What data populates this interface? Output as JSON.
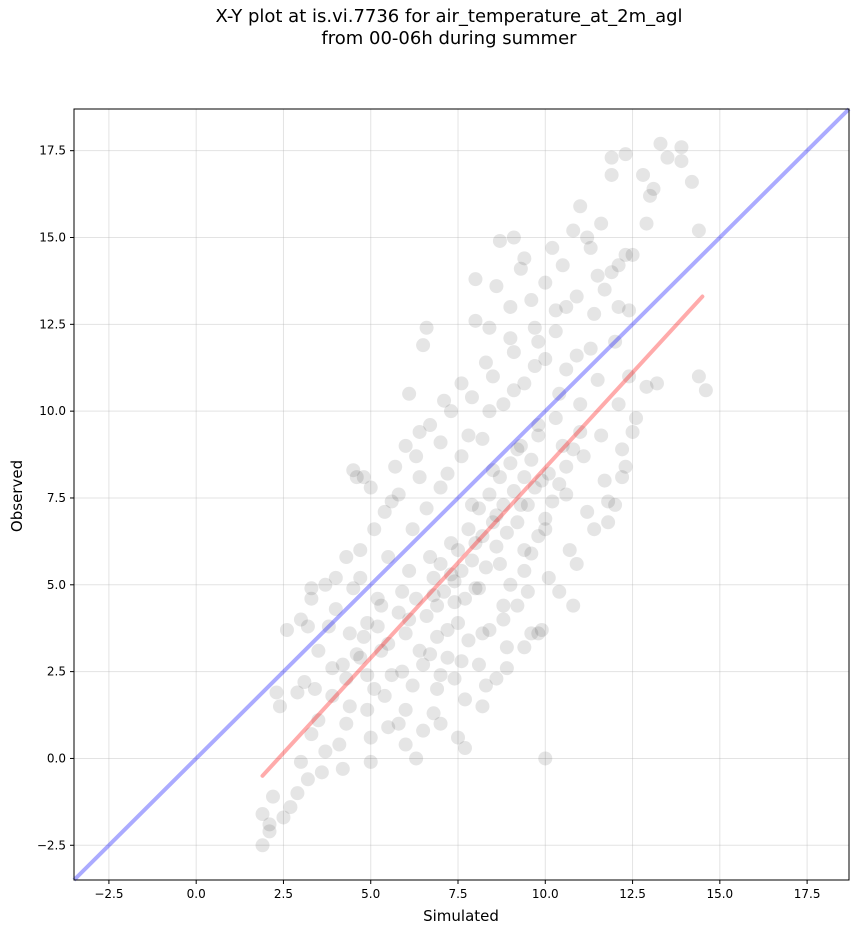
{
  "title": "X-Y plot at is.vi.7736 for air_temperature_at_2m_agl\nfrom 00-06h during summer",
  "chart_data": {
    "type": "scatter",
    "title": "X-Y plot at is.vi.7736 for air_temperature_at_2m_agl\nfrom 00-06h during summer",
    "xlabel": "Simulated",
    "ylabel": "Observed",
    "xlim": [
      -3.5,
      18.7
    ],
    "ylim": [
      -3.5,
      18.7
    ],
    "xticks": [
      "−2.5",
      "0.0",
      "2.5",
      "5.0",
      "7.5",
      "10.0",
      "12.5",
      "15.0",
      "17.5"
    ],
    "yticks": [
      "−2.5",
      "0.0",
      "2.5",
      "5.0",
      "7.5",
      "10.0",
      "12.5",
      "15.0",
      "17.5"
    ],
    "grid": true,
    "point_color": "#000000",
    "point_opacity": 0.1,
    "identity_line": {
      "color": "#0000ff",
      "from": [
        -3.5,
        -3.5
      ],
      "to": [
        18.7,
        18.7
      ]
    },
    "fit_line": {
      "color": "#ff0000",
      "from": [
        1.9,
        -0.5
      ],
      "to": [
        14.5,
        13.3
      ]
    },
    "points": [
      [
        1.9,
        -2.5
      ],
      [
        1.9,
        -1.6
      ],
      [
        2.1,
        -2.1
      ],
      [
        2.2,
        -1.1
      ],
      [
        2.5,
        -1.7
      ],
      [
        2.7,
        -1.4
      ],
      [
        2.1,
        -1.9
      ],
      [
        2.3,
        1.9
      ],
      [
        2.4,
        1.5
      ],
      [
        2.6,
        3.7
      ],
      [
        2.9,
        -1.0
      ],
      [
        3.0,
        -0.1
      ],
      [
        3.2,
        -0.6
      ],
      [
        2.9,
        1.9
      ],
      [
        3.1,
        2.2
      ],
      [
        3.2,
        3.8
      ],
      [
        3.3,
        4.6
      ],
      [
        3.3,
        4.9
      ],
      [
        3.0,
        4.0
      ],
      [
        3.3,
        0.7
      ],
      [
        3.4,
        2.0
      ],
      [
        3.5,
        3.1
      ],
      [
        3.6,
        -0.4
      ],
      [
        3.7,
        0.2
      ],
      [
        3.5,
        1.1
      ],
      [
        3.7,
        5.0
      ],
      [
        3.8,
        3.8
      ],
      [
        3.9,
        2.6
      ],
      [
        4.0,
        4.3
      ],
      [
        4.0,
        5.2
      ],
      [
        4.1,
        0.4
      ],
      [
        4.2,
        -0.3
      ],
      [
        4.3,
        1.0
      ],
      [
        4.3,
        2.3
      ],
      [
        4.4,
        3.6
      ],
      [
        4.3,
        5.8
      ],
      [
        4.5,
        4.9
      ],
      [
        4.5,
        8.3
      ],
      [
        4.6,
        8.1
      ],
      [
        4.8,
        8.1
      ],
      [
        4.7,
        6.0
      ],
      [
        4.7,
        5.2
      ],
      [
        4.8,
        3.5
      ],
      [
        4.9,
        2.4
      ],
      [
        4.9,
        1.4
      ],
      [
        5.0,
        0.6
      ],
      [
        5.0,
        -0.1
      ],
      [
        5.1,
        6.6
      ],
      [
        5.2,
        4.6
      ],
      [
        5.3,
        3.1
      ],
      [
        5.4,
        1.8
      ],
      [
        5.5,
        0.9
      ],
      [
        5.5,
        5.8
      ],
      [
        5.6,
        7.4
      ],
      [
        5.7,
        8.4
      ],
      [
        5.8,
        4.2
      ],
      [
        5.9,
        2.5
      ],
      [
        6.0,
        1.4
      ],
      [
        6.0,
        3.6
      ],
      [
        6.1,
        5.4
      ],
      [
        6.2,
        6.6
      ],
      [
        6.3,
        8.7
      ],
      [
        6.1,
        10.5
      ],
      [
        6.4,
        9.4
      ],
      [
        6.5,
        11.9
      ],
      [
        6.6,
        12.4
      ],
      [
        6.6,
        7.2
      ],
      [
        6.7,
        5.8
      ],
      [
        6.8,
        4.7
      ],
      [
        6.9,
        3.5
      ],
      [
        7.0,
        2.4
      ],
      [
        6.3,
        0.0
      ],
      [
        6.8,
        1.3
      ],
      [
        7.0,
        9.1
      ],
      [
        7.1,
        10.3
      ],
      [
        7.2,
        8.2
      ],
      [
        7.3,
        6.2
      ],
      [
        7.4,
        5.1
      ],
      [
        7.5,
        3.9
      ],
      [
        7.6,
        2.8
      ],
      [
        7.7,
        1.7
      ],
      [
        7.5,
        0.6
      ],
      [
        7.6,
        10.8
      ],
      [
        7.8,
        9.3
      ],
      [
        7.9,
        7.3
      ],
      [
        8.0,
        6.2
      ],
      [
        8.1,
        4.9
      ],
      [
        8.2,
        3.6
      ],
      [
        8.3,
        2.1
      ],
      [
        8.0,
        12.6
      ],
      [
        8.3,
        11.4
      ],
      [
        8.4,
        10.0
      ],
      [
        8.5,
        8.3
      ],
      [
        8.6,
        7.0
      ],
      [
        8.7,
        5.6
      ],
      [
        8.8,
        4.4
      ],
      [
        8.9,
        3.2
      ],
      [
        8.6,
        13.6
      ],
      [
        8.7,
        14.9
      ],
      [
        9.0,
        12.1
      ],
      [
        9.1,
        10.6
      ],
      [
        9.2,
        8.9
      ],
      [
        9.3,
        7.3
      ],
      [
        9.4,
        6.0
      ],
      [
        9.5,
        4.8
      ],
      [
        9.6,
        3.6
      ],
      [
        9.1,
        15.0
      ],
      [
        9.3,
        14.1
      ],
      [
        9.6,
        13.2
      ],
      [
        9.7,
        11.3
      ],
      [
        9.8,
        9.6
      ],
      [
        9.9,
        8.0
      ],
      [
        10.0,
        6.6
      ],
      [
        10.1,
        5.2
      ],
      [
        9.9,
        3.7
      ],
      [
        10.0,
        0.0
      ],
      [
        10.2,
        14.7
      ],
      [
        10.3,
        12.3
      ],
      [
        10.4,
        10.5
      ],
      [
        10.5,
        9.0
      ],
      [
        10.6,
        7.6
      ],
      [
        10.7,
        6.0
      ],
      [
        10.8,
        4.4
      ],
      [
        10.6,
        13.0
      ],
      [
        10.8,
        15.2
      ],
      [
        10.9,
        11.6
      ],
      [
        11.0,
        10.2
      ],
      [
        11.1,
        8.7
      ],
      [
        11.2,
        7.1
      ],
      [
        11.0,
        15.9
      ],
      [
        11.3,
        14.7
      ],
      [
        11.4,
        12.8
      ],
      [
        11.5,
        10.9
      ],
      [
        11.6,
        9.3
      ],
      [
        11.7,
        8.0
      ],
      [
        11.8,
        6.8
      ],
      [
        11.6,
        15.4
      ],
      [
        11.9,
        14.0
      ],
      [
        12.0,
        12.0
      ],
      [
        12.1,
        10.2
      ],
      [
        12.2,
        8.9
      ],
      [
        12.0,
        7.3
      ],
      [
        11.9,
        17.3
      ],
      [
        11.9,
        16.8
      ],
      [
        12.3,
        17.4
      ],
      [
        12.3,
        14.5
      ],
      [
        12.4,
        12.9
      ],
      [
        12.4,
        11.0
      ],
      [
        12.5,
        9.4
      ],
      [
        12.3,
        8.4
      ],
      [
        12.8,
        16.8
      ],
      [
        12.9,
        15.4
      ],
      [
        13.0,
        16.2
      ],
      [
        13.1,
        16.4
      ],
      [
        12.9,
        10.7
      ],
      [
        13.3,
        17.7
      ],
      [
        13.5,
        17.3
      ],
      [
        13.9,
        17.6
      ],
      [
        13.9,
        17.2
      ],
      [
        14.2,
        16.6
      ],
      [
        14.4,
        15.2
      ],
      [
        14.4,
        11.0
      ],
      [
        14.6,
        10.6
      ],
      [
        4.6,
        3.0
      ],
      [
        5.2,
        3.8
      ],
      [
        5.5,
        3.3
      ],
      [
        5.9,
        4.8
      ],
      [
        6.1,
        4.0
      ],
      [
        6.3,
        4.6
      ],
      [
        6.4,
        3.1
      ],
      [
        6.6,
        4.1
      ],
      [
        6.7,
        3.0
      ],
      [
        6.8,
        5.2
      ],
      [
        6.9,
        4.4
      ],
      [
        7.0,
        5.6
      ],
      [
        7.1,
        4.8
      ],
      [
        7.2,
        3.7
      ],
      [
        7.3,
        5.3
      ],
      [
        7.4,
        4.5
      ],
      [
        7.5,
        6.0
      ],
      [
        7.6,
        5.4
      ],
      [
        7.7,
        4.6
      ],
      [
        7.8,
        6.6
      ],
      [
        7.9,
        5.7
      ],
      [
        8.0,
        4.9
      ],
      [
        8.1,
        7.2
      ],
      [
        8.2,
        6.4
      ],
      [
        8.3,
        5.5
      ],
      [
        8.4,
        7.6
      ],
      [
        8.5,
        6.8
      ],
      [
        8.6,
        6.1
      ],
      [
        8.7,
        8.1
      ],
      [
        8.8,
        7.3
      ],
      [
        8.9,
        6.5
      ],
      [
        9.0,
        8.5
      ],
      [
        9.1,
        7.7
      ],
      [
        9.2,
        6.8
      ],
      [
        9.3,
        9.0
      ],
      [
        9.4,
        8.1
      ],
      [
        9.5,
        7.3
      ],
      [
        9.6,
        8.6
      ],
      [
        9.7,
        7.8
      ],
      [
        9.8,
        9.3
      ],
      [
        6.2,
        2.1
      ],
      [
        6.5,
        2.7
      ],
      [
        6.9,
        2.0
      ],
      [
        7.2,
        2.9
      ],
      [
        7.4,
        2.3
      ],
      [
        7.8,
        3.4
      ],
      [
        8.1,
        2.7
      ],
      [
        8.4,
        3.7
      ],
      [
        8.8,
        4.0
      ],
      [
        9.0,
        5.0
      ],
      [
        9.2,
        4.4
      ],
      [
        9.4,
        5.4
      ],
      [
        9.6,
        5.9
      ],
      [
        9.8,
        6.4
      ],
      [
        10.0,
        6.9
      ],
      [
        10.2,
        7.4
      ],
      [
        10.4,
        7.9
      ],
      [
        10.6,
        8.4
      ],
      [
        10.8,
        8.9
      ],
      [
        11.0,
        9.4
      ],
      [
        10.1,
        8.2
      ],
      [
        10.3,
        9.8
      ],
      [
        5.0,
        7.8
      ],
      [
        5.4,
        7.1
      ],
      [
        5.8,
        7.6
      ],
      [
        6.0,
        9.0
      ],
      [
        6.4,
        8.1
      ],
      [
        6.7,
        9.6
      ],
      [
        7.0,
        7.8
      ],
      [
        7.3,
        10.0
      ],
      [
        7.6,
        8.7
      ],
      [
        7.9,
        10.4
      ],
      [
        8.2,
        9.2
      ],
      [
        8.5,
        11.0
      ],
      [
        8.8,
        10.2
      ],
      [
        9.1,
        11.7
      ],
      [
        9.4,
        10.8
      ],
      [
        9.7,
        12.4
      ],
      [
        10.0,
        11.5
      ],
      [
        10.3,
        12.9
      ],
      [
        10.6,
        11.2
      ],
      [
        10.9,
        13.3
      ],
      [
        3.9,
        1.8
      ],
      [
        4.2,
        2.7
      ],
      [
        4.4,
        1.5
      ],
      [
        4.7,
        2.9
      ],
      [
        4.9,
        3.9
      ],
      [
        5.1,
        2.0
      ],
      [
        5.3,
        4.4
      ],
      [
        5.6,
        2.4
      ],
      [
        5.8,
        1.0
      ],
      [
        6.0,
        0.4
      ],
      [
        6.5,
        0.8
      ],
      [
        7.0,
        1.0
      ],
      [
        7.7,
        0.3
      ],
      [
        8.2,
        1.5
      ],
      [
        8.6,
        2.3
      ],
      [
        8.9,
        2.6
      ],
      [
        9.4,
        3.2
      ],
      [
        9.8,
        3.6
      ],
      [
        10.4,
        4.8
      ],
      [
        10.9,
        5.6
      ],
      [
        11.4,
        6.6
      ],
      [
        11.8,
        7.4
      ],
      [
        12.2,
        8.1
      ],
      [
        12.6,
        9.8
      ],
      [
        13.2,
        10.8
      ],
      [
        11.3,
        11.8
      ],
      [
        11.7,
        13.5
      ],
      [
        12.1,
        13.0
      ],
      [
        12.5,
        14.5
      ],
      [
        8.0,
        13.8
      ],
      [
        8.4,
        12.4
      ],
      [
        9.0,
        13.0
      ],
      [
        9.4,
        14.4
      ],
      [
        9.8,
        12.0
      ],
      [
        10.0,
        13.7
      ],
      [
        10.5,
        14.2
      ],
      [
        11.2,
        15.0
      ],
      [
        11.5,
        13.9
      ],
      [
        12.1,
        14.2
      ]
    ]
  }
}
